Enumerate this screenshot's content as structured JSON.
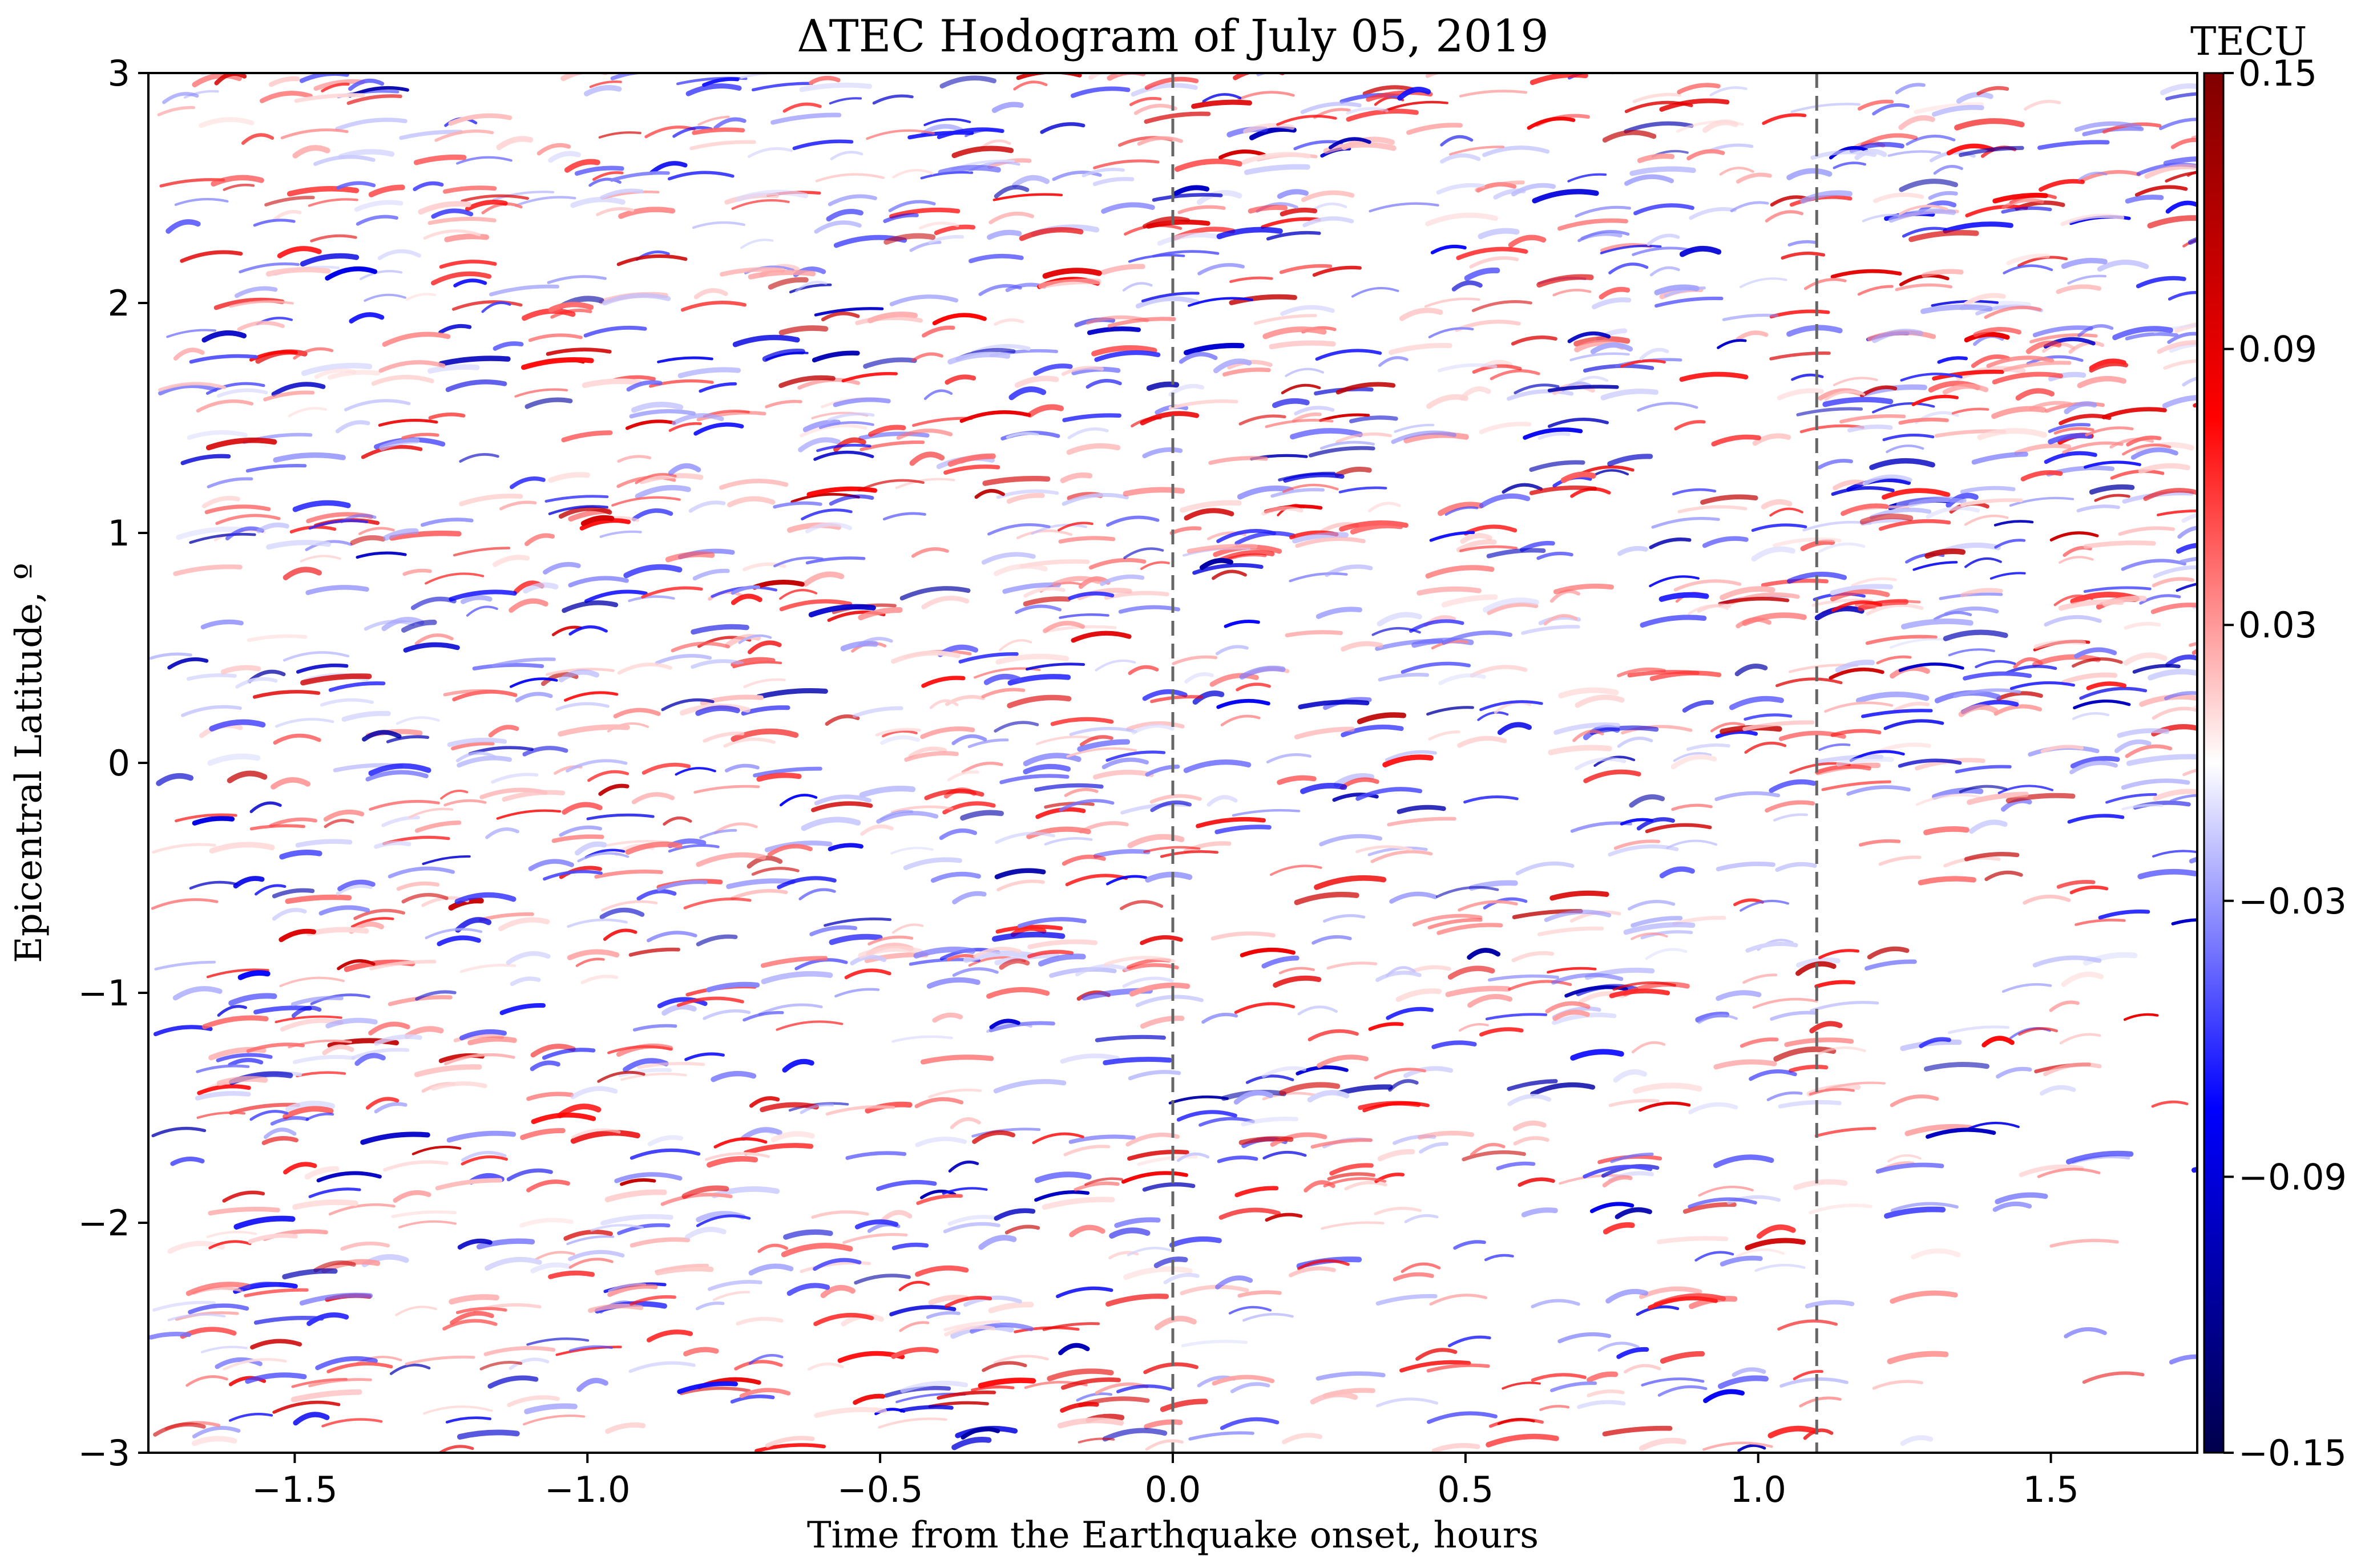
{
  "chart_data": {
    "type": "heatmap",
    "title": "ΔTEC  Hodogram of July 05, 2019",
    "xlabel": "Time from the Earthquake onset, hours",
    "ylabel": "Epicentral Latitude, º",
    "xlim": [
      -1.75,
      1.75
    ],
    "ylim": [
      -3,
      3
    ],
    "xticks": [
      -1.5,
      -1.0,
      -0.5,
      0.0,
      0.5,
      1.0,
      1.5
    ],
    "xtick_labels": [
      "−1.5",
      "−1.0",
      "−0.5",
      "0.0",
      "0.5",
      "1.0",
      "1.5"
    ],
    "yticks": [
      3,
      2,
      1,
      0,
      -1,
      -2,
      -3
    ],
    "ytick_labels": [
      "3",
      "2",
      "1",
      "0",
      "−1",
      "−2",
      "−3"
    ],
    "reference_lines": [
      0.0,
      1.1
    ],
    "reference_line_style": "dashed gray",
    "colorbar": {
      "label": "TECU",
      "colormap": "seismic",
      "min": -0.15,
      "max": 0.15,
      "ticks": [
        0.15,
        0.09,
        0.03,
        -0.03,
        -0.09,
        -0.15
      ],
      "tick_labels": [
        "0.15",
        "0.09",
        "0.03",
        "−0.03",
        "−0.09",
        "−0.15"
      ],
      "colors": [
        "#00004c",
        "#0000ff",
        "#ffffff",
        "#ff0000",
        "#800000"
      ]
    },
    "note": "Dense field of short diagonal tracks of ΔTEC values ranging roughly between -0.12 and 0.12 TECU, denser before 0 h and at latitudes above 0º after 1.1 h."
  }
}
